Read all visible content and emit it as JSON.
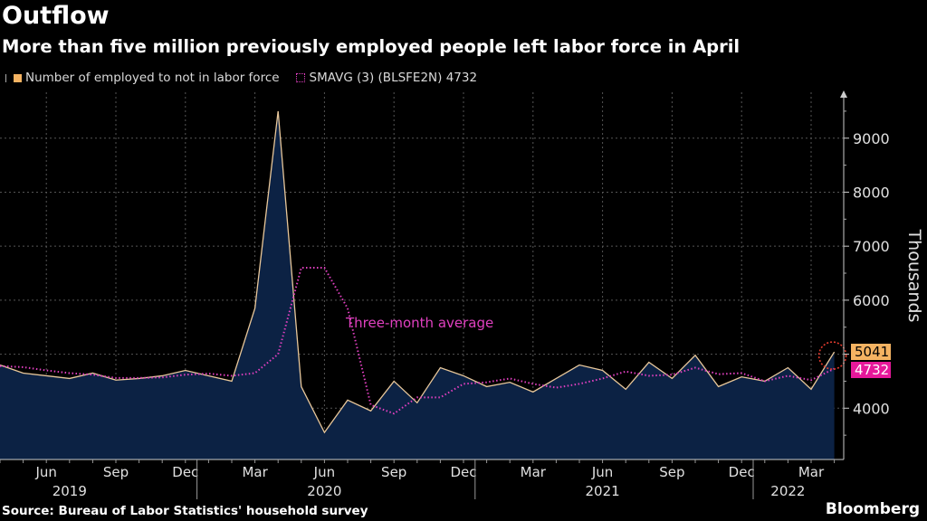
{
  "header": {
    "title": "Outflow",
    "subtitle": "More than five million previously employed people left labor force in April"
  },
  "legend": {
    "series1": "Number of employed to not in labor force",
    "series2": "SMAVG (3) (BLSFE2N) 4732"
  },
  "footer": {
    "source": "Source: Bureau of Labor Statistics' household survey",
    "brand": "Bloomberg"
  },
  "colors": {
    "series1_line": "#e8c79a",
    "area_fill": "#0c2244",
    "series2_line": "#e040c0",
    "badge1": "#f5b362",
    "badge2": "#e6189a",
    "highlight_circle": "#e23b2e"
  },
  "chart_data": {
    "type": "line",
    "x": [
      "2019-04",
      "2019-05",
      "2019-06",
      "2019-07",
      "2019-08",
      "2019-09",
      "2019-10",
      "2019-11",
      "2019-12",
      "2020-01",
      "2020-02",
      "2020-03",
      "2020-04",
      "2020-05",
      "2020-06",
      "2020-07",
      "2020-08",
      "2020-09",
      "2020-10",
      "2020-11",
      "2020-12",
      "2021-01",
      "2021-02",
      "2021-03",
      "2021-04",
      "2021-05",
      "2021-06",
      "2021-07",
      "2021-08",
      "2021-09",
      "2021-10",
      "2021-11",
      "2021-12",
      "2022-01",
      "2022-02",
      "2022-03",
      "2022-04"
    ],
    "series": [
      {
        "name": "Number of employed to not in labor force",
        "values": [
          4800,
          4650,
          4600,
          4550,
          4650,
          4520,
          4550,
          4600,
          4700,
          4600,
          4500,
          5850,
          9500,
          4400,
          3550,
          4150,
          3950,
          4500,
          4100,
          4750,
          4600,
          4400,
          4480,
          4300,
          4550,
          4800,
          4700,
          4350,
          4850,
          4550,
          4980,
          4400,
          4580,
          4500,
          4750,
          4350,
          5041
        ]
      },
      {
        "name": "SMAVG (3) (BLSFE2N)",
        "values": [
          4780,
          4760,
          4700,
          4650,
          4620,
          4560,
          4560,
          4570,
          4620,
          4640,
          4600,
          4650,
          5000,
          6600,
          6600,
          5850,
          4060,
          3900,
          4200,
          4200,
          4450,
          4480,
          4550,
          4450,
          4380,
          4450,
          4550,
          4680,
          4600,
          4620,
          4750,
          4630,
          4650,
          4500,
          4600,
          4520,
          4732
        ]
      }
    ],
    "x_tick_labels": [
      "Jun",
      "Sep",
      "Dec",
      "Mar",
      "Jun",
      "Sep",
      "Dec",
      "Mar",
      "Jun",
      "Sep",
      "Dec",
      "Mar"
    ],
    "x_tick_months": [
      "2019-06",
      "2019-09",
      "2019-12",
      "2020-03",
      "2020-06",
      "2020-09",
      "2020-12",
      "2021-03",
      "2021-06",
      "2021-09",
      "2021-12",
      "2022-03"
    ],
    "year_labels": [
      "2019",
      "2020",
      "2021",
      "2022"
    ],
    "year_label_months": [
      "2019-07",
      "2020-06",
      "2021-06",
      "2022-02"
    ],
    "ylabel": "Thousands",
    "yticks": [
      4000,
      5000,
      6000,
      7000,
      8000,
      9000
    ],
    "ylim": [
      3050,
      9850
    ],
    "last_value_labels": [
      "5041",
      "4732"
    ],
    "annotation": "Three-month average",
    "grid": true,
    "legend_position": "top-left"
  }
}
